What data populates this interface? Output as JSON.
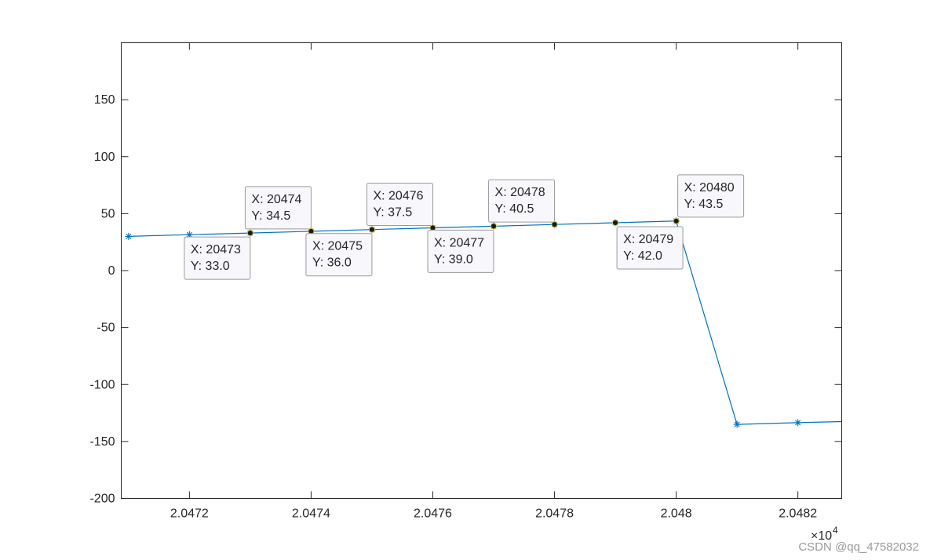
{
  "chart_data": {
    "type": "line",
    "title": "",
    "xlabel": "",
    "ylabel": "",
    "xlim": [
      20470.88,
      20482.72
    ],
    "ylim": [
      -200,
      200
    ],
    "x_exponent_label": "×10",
    "x_exponent_power": "4",
    "x_ticks": [
      20472,
      20474,
      20476,
      20478,
      20480,
      20482
    ],
    "x_tick_labels": [
      "2.0472",
      "2.0474",
      "2.0476",
      "2.0478",
      "2.048",
      "2.0482"
    ],
    "y_ticks": [
      150,
      100,
      50,
      0,
      -50,
      -100,
      -150,
      -200
    ],
    "y_tick_labels": [
      "150",
      "100",
      "50",
      "0",
      "-50",
      "-100",
      "-150",
      "-200"
    ],
    "line_color": "#0072BD",
    "series": [
      {
        "x": [
          20471,
          20472,
          20473,
          20474,
          20475,
          20476,
          20477,
          20478,
          20479,
          20480,
          20481,
          20482,
          20482.72
        ],
        "y": [
          30,
          31.5,
          33.0,
          34.5,
          36.0,
          37.5,
          39.0,
          40.5,
          42.0,
          43.5,
          -135,
          -133.5,
          -132.5
        ],
        "marker": "*"
      }
    ],
    "datatips": [
      {
        "x": 20473,
        "y": 33.0,
        "label_x": "X: 20473",
        "label_y": "Y: 33.0",
        "position": "below-left"
      },
      {
        "x": 20474,
        "y": 34.5,
        "label_x": "X: 20474",
        "label_y": "Y: 34.5",
        "position": "above-left"
      },
      {
        "x": 20475,
        "y": 36.0,
        "label_x": "X: 20475",
        "label_y": "Y: 36.0",
        "position": "below-left"
      },
      {
        "x": 20476,
        "y": 37.5,
        "label_x": "X: 20476",
        "label_y": "Y: 37.5",
        "position": "above-left"
      },
      {
        "x": 20477,
        "y": 39.0,
        "label_x": "X: 20477",
        "label_y": "Y: 39.0",
        "position": "below-left"
      },
      {
        "x": 20478,
        "y": 40.5,
        "label_x": "X: 20478",
        "label_y": "Y: 40.5",
        "position": "above-left"
      },
      {
        "x": 20479,
        "y": 42.0,
        "label_x": "X: 20479",
        "label_y": "Y: 42.0",
        "position": "below"
      },
      {
        "x": 20480,
        "y": 43.5,
        "label_x": "X: 20480",
        "label_y": "Y: 43.5",
        "position": "above-right"
      }
    ],
    "grid": false,
    "legend": "none"
  },
  "watermark": "CSDN @qq_47582032"
}
